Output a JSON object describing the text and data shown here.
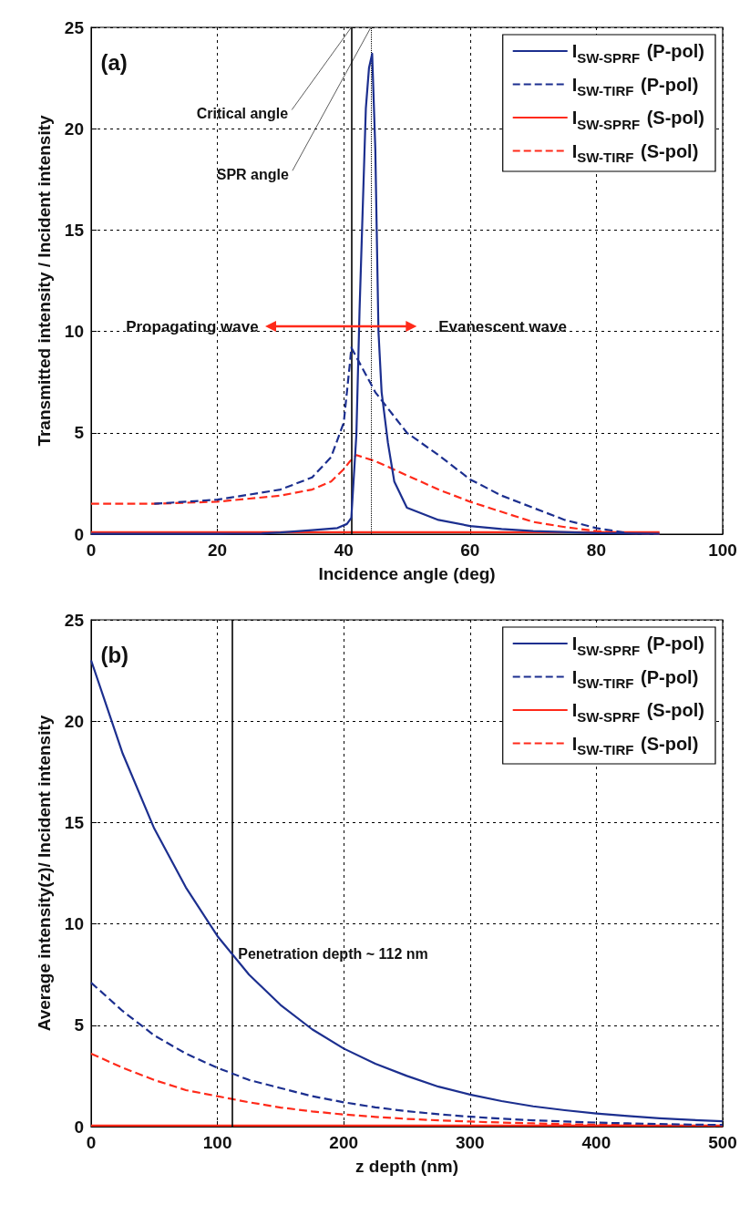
{
  "chart_data": [
    {
      "type": "line",
      "xlabel": "Incidence angle (deg)",
      "ylabel": "Transmitted intensity / Incident intensity",
      "xlim": [
        0,
        100
      ],
      "xticks": [
        0,
        20,
        40,
        60,
        80,
        100
      ],
      "ylim": [
        0,
        25
      ],
      "yticks": [
        0,
        5,
        10,
        15,
        20,
        25
      ],
      "grid": true,
      "legend": "top right",
      "annotations": [
        "(a)",
        "Propagating wave",
        "Evanescent wave"
      ],
      "ref_lines": [
        {
          "axis": "x",
          "value": 41.2,
          "label": "Critical angle",
          "color": "#000000",
          "line_style": "solid"
        },
        {
          "axis": "x",
          "value": 44.3,
          "label": "SPR angle",
          "color": "#000000",
          "line_style": "dotted"
        }
      ],
      "series": [
        {
          "name": "I$_{SW-SPRF}$ (P-pol)",
          "color": "#1c2f8f",
          "line_style": "solid",
          "x": [
            0,
            10,
            20,
            27,
            30,
            35,
            39,
            40.5,
            41.2,
            42,
            42.5,
            43,
            43.5,
            44,
            44.5,
            45,
            45.5,
            46,
            47,
            48,
            50,
            55,
            60,
            65,
            70,
            80,
            90
          ],
          "values": [
            0.02,
            0.02,
            0.02,
            0.03,
            0.08,
            0.2,
            0.3,
            0.5,
            0.8,
            4.9,
            11,
            16,
            21,
            23,
            23.7,
            19,
            10,
            7,
            4.5,
            2.6,
            1.3,
            0.7,
            0.4,
            0.25,
            0.15,
            0.05,
            0.02
          ]
        },
        {
          "name": "I$_{SW-TIRF}$ (P-pol)",
          "color": "#1c2f8f",
          "line_style": "dashed",
          "x": [
            10,
            20,
            30,
            35,
            38,
            40,
            41,
            41.2,
            45,
            50,
            55,
            60,
            65,
            70,
            75,
            80,
            85
          ],
          "values": [
            1.5,
            1.7,
            2.2,
            2.8,
            3.8,
            5.5,
            8.5,
            9.2,
            7.0,
            5.0,
            3.9,
            2.7,
            1.9,
            1.3,
            0.7,
            0.3,
            0.05
          ]
        },
        {
          "name": "I$_{SW-SPRF}$ (S-pol)",
          "color": "#ff2a1a",
          "line_style": "solid",
          "x": [
            0,
            90
          ],
          "values": [
            0.1,
            0.1
          ]
        },
        {
          "name": "I$_{SW-TIRF}$ (S-pol)",
          "color": "#ff2a1a",
          "line_style": "dashed",
          "x": [
            0,
            10,
            20,
            30,
            35,
            38,
            40,
            41,
            42,
            45,
            50,
            55,
            60,
            65,
            70,
            75,
            80,
            85,
            90
          ],
          "values": [
            1.5,
            1.5,
            1.6,
            1.9,
            2.2,
            2.6,
            3.2,
            3.6,
            3.9,
            3.6,
            2.9,
            2.2,
            1.6,
            1.1,
            0.6,
            0.35,
            0.15,
            0.05,
            0.02
          ]
        }
      ]
    },
    {
      "type": "line",
      "xlabel": "z depth (nm)",
      "ylabel": "Average intensity(z)/ Incident intensity",
      "xlim": [
        0,
        500
      ],
      "xticks": [
        0,
        100,
        200,
        300,
        400,
        500
      ],
      "ylim": [
        0,
        25
      ],
      "yticks": [
        0,
        5,
        10,
        15,
        20,
        25
      ],
      "grid": true,
      "legend": "top right",
      "annotations": [
        "(b)"
      ],
      "ref_lines": [
        {
          "axis": "x",
          "value": 112,
          "label": "Penetration depth ~ 112 nm",
          "color": "#000000",
          "line_style": "solid"
        }
      ],
      "x": [
        0,
        25,
        50,
        75,
        100,
        125,
        150,
        175,
        200,
        225,
        250,
        275,
        300,
        325,
        350,
        375,
        400,
        425,
        450,
        475,
        500
      ],
      "series": [
        {
          "name": "I$_{SW-SPRF}$ (P-pol)",
          "color": "#1c2f8f",
          "line_style": "solid",
          "values": [
            23,
            18.4,
            14.7,
            11.8,
            9.4,
            7.5,
            6.0,
            4.8,
            3.85,
            3.1,
            2.5,
            1.97,
            1.58,
            1.26,
            1.0,
            0.81,
            0.65,
            0.52,
            0.41,
            0.33,
            0.26
          ]
        },
        {
          "name": "I$_{SW-TIRF}$ (P-pol)",
          "color": "#1c2f8f",
          "line_style": "dashed",
          "values": [
            7.1,
            5.7,
            4.5,
            3.6,
            2.9,
            2.3,
            1.9,
            1.5,
            1.2,
            0.95,
            0.76,
            0.61,
            0.49,
            0.39,
            0.31,
            0.25,
            0.2,
            0.16,
            0.13,
            0.1,
            0.08
          ]
        },
        {
          "name": "I$_{SW-SPRF}$ (S-pol)",
          "color": "#ff2a1a",
          "line_style": "solid",
          "values": [
            0.05,
            0.05,
            0.05,
            0.05,
            0.05,
            0.05,
            0.05,
            0.05,
            0.05,
            0.05,
            0.05,
            0.05,
            0.05,
            0.05,
            0.05,
            0.05,
            0.05,
            0.05,
            0.05,
            0.05,
            0.05
          ]
        },
        {
          "name": "I$_{SW-TIRF}$ (S-pol)",
          "color": "#ff2a1a",
          "line_style": "dashed",
          "values": [
            3.6,
            2.9,
            2.3,
            1.8,
            1.5,
            1.2,
            0.94,
            0.75,
            0.6,
            0.48,
            0.38,
            0.31,
            0.25,
            0.2,
            0.16,
            0.12,
            0.1,
            0.08,
            0.06,
            0.05,
            0.04
          ]
        }
      ]
    }
  ]
}
